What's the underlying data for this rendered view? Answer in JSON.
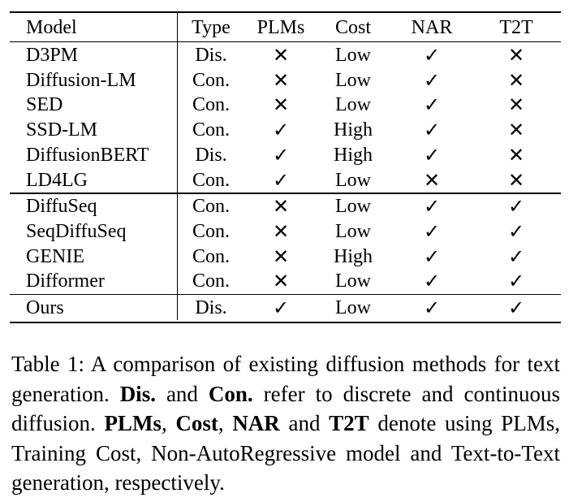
{
  "table": {
    "headers": {
      "model": "Model",
      "type": "Type",
      "plms": "PLMs",
      "cost": "Cost",
      "nar": "NAR",
      "t2t": "T2T"
    },
    "group1": [
      {
        "model": "D3PM",
        "type": "Dis.",
        "plms": "✕",
        "cost": "Low",
        "nar": "✓",
        "t2t": "✕"
      },
      {
        "model": "Diffusion-LM",
        "type": "Con.",
        "plms": "✕",
        "cost": "Low",
        "nar": "✓",
        "t2t": "✕"
      },
      {
        "model": "SED",
        "type": "Con.",
        "plms": "✕",
        "cost": "Low",
        "nar": "✓",
        "t2t": "✕"
      },
      {
        "model": "SSD-LM",
        "type": "Con.",
        "plms": "✓",
        "cost": "High",
        "nar": "✓",
        "t2t": "✕"
      },
      {
        "model": "DiffusionBERT",
        "type": "Dis.",
        "plms": "✓",
        "cost": "High",
        "nar": "✓",
        "t2t": "✕"
      },
      {
        "model": "LD4LG",
        "type": "Con.",
        "plms": "✓",
        "cost": "Low",
        "nar": "✕",
        "t2t": "✕"
      }
    ],
    "group2": [
      {
        "model": "DiffuSeq",
        "type": "Con.",
        "plms": "✕",
        "cost": "Low",
        "nar": "✓",
        "t2t": "✓"
      },
      {
        "model": "SeqDiffuSeq",
        "type": "Con.",
        "plms": "✕",
        "cost": "Low",
        "nar": "✓",
        "t2t": "✓"
      },
      {
        "model": "GENIE",
        "type": "Con.",
        "plms": "✕",
        "cost": "High",
        "nar": "✓",
        "t2t": "✓"
      },
      {
        "model": "Difformer",
        "type": "Con.",
        "plms": "✕",
        "cost": "Low",
        "nar": "✓",
        "t2t": "✓"
      }
    ],
    "group3": [
      {
        "model": "Ours",
        "type": "Dis.",
        "plms": "✓",
        "cost": "Low",
        "nar": "✓",
        "t2t": "✓"
      }
    ]
  },
  "caption": {
    "p1": "Table 1: A comparison of existing diffusion methods for text generation. ",
    "b1": "Dis.",
    "p2": " and ",
    "b2": "Con.",
    "p3": " refer to discrete and continuous diffusion. ",
    "b3": "PLMs",
    "p4": ", ",
    "b4": "Cost",
    "p5": ", ",
    "b5": "NAR",
    "p6": " and ",
    "b6": "T2T",
    "p7": " denote using PLMs, Training Cost, Non-AutoRegressive model and Text-to-Text generation, respectively."
  }
}
